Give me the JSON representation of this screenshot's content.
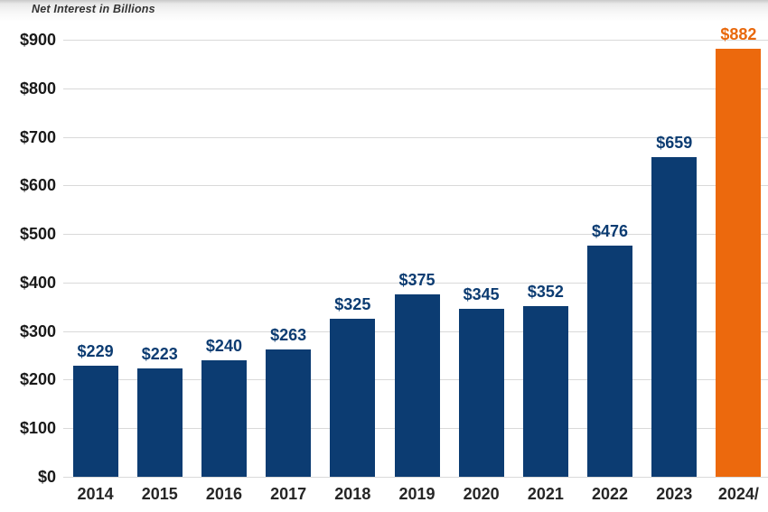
{
  "chart_data": {
    "type": "bar",
    "title": "Net Interest in Billions",
    "categories": [
      "2014",
      "2015",
      "2016",
      "2017",
      "2018",
      "2019",
      "2020",
      "2021",
      "2022",
      "2023",
      "2024/"
    ],
    "values": [
      229,
      223,
      240,
      263,
      325,
      375,
      345,
      352,
      476,
      659,
      882
    ],
    "bar_labels": [
      "$229",
      "$223",
      "$240",
      "$263",
      "$325",
      "$375",
      "$345",
      "$352",
      "$476",
      "$659",
      "$882"
    ],
    "xlabel": "",
    "ylabel": "Net Interest in Billions",
    "ylim": [
      0,
      900
    ],
    "grid": true,
    "legend_position": "none",
    "highlight_index": 10,
    "yticks": [
      {
        "value": 0,
        "label": "$0"
      },
      {
        "value": 100,
        "label": "$100"
      },
      {
        "value": 200,
        "label": "$200"
      },
      {
        "value": 300,
        "label": "$300"
      },
      {
        "value": 400,
        "label": "$400"
      },
      {
        "value": 500,
        "label": "$500"
      },
      {
        "value": 600,
        "label": "$600"
      },
      {
        "value": 700,
        "label": "$700"
      },
      {
        "value": 800,
        "label": "$800"
      },
      {
        "value": 900,
        "label": "$900"
      }
    ],
    "colors": {
      "bar": "#0C3C72",
      "highlight_bar": "#EC690D",
      "bar_label": "#0C3C72",
      "highlight_bar_label": "#E8680C",
      "axis_text": "#1a1a1a",
      "xaxis_text": "#262626",
      "gridline": "#d9d9d9"
    }
  }
}
